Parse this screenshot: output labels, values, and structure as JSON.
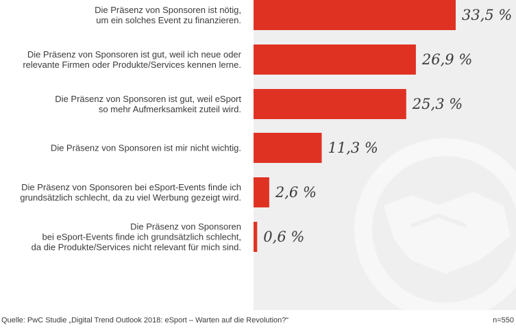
{
  "chart_data": {
    "type": "bar",
    "orientation": "horizontal",
    "unit": "%",
    "bar_color": "#e03223",
    "panel_color": "#efefef",
    "categories": [
      [
        "Die Präsenz von Sponsoren ist nötig,",
        "um ein solches Event zu finanzieren."
      ],
      [
        "Die Präsenz von Sponsoren ist gut, weil ich neue oder",
        "relevante Firmen oder Produkte/Services kennen lerne."
      ],
      [
        "Die Präsenz von Sponsoren ist gut, weil eSport",
        "so mehr Aufmerksamkeit zuteil wird."
      ],
      [
        "Die Präsenz von Sponsoren ist mir nicht wichtig."
      ],
      [
        "Die Präsenz von Sponsoren bei eSport-Events finde ich",
        "grundsätzlich schlecht, da zu viel Werbung gezeigt wird."
      ],
      [
        "Die Präsenz von Sponsoren",
        "bei eSport-Events finde ich grundsätzlich schlecht,",
        "da die Produkte/Services nicht relevant für mich sind."
      ]
    ],
    "values": [
      33.5,
      26.9,
      25.3,
      11.3,
      2.6,
      0.6
    ],
    "value_labels": [
      "33,5 %",
      "26,9 %",
      "25,3 %",
      "11,3 %",
      "2,6 %",
      "0,6 %"
    ]
  },
  "footer": {
    "source": "Quelle: PwC Studie „Digital Trend Outlook 2018: eSport – Warten auf die Revolution?“",
    "sample": "n=550"
  }
}
